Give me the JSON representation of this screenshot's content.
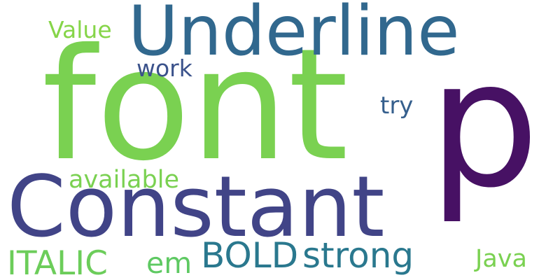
{
  "words": [
    {
      "text": "font",
      "color": "#7ad151"
    },
    {
      "text": "p",
      "color": "#471164"
    },
    {
      "text": "Underline",
      "color": "#31688e"
    },
    {
      "text": "Constant",
      "color": "#414487"
    },
    {
      "text": "BOLD",
      "color": "#2a788e"
    },
    {
      "text": "strong",
      "color": "#2a788e"
    },
    {
      "text": "ITALIC",
      "color": "#6ccd5a"
    },
    {
      "text": "em",
      "color": "#5ec962"
    },
    {
      "text": "Value",
      "color": "#86d549"
    },
    {
      "text": "work",
      "color": "#3b528b"
    },
    {
      "text": "try",
      "color": "#355f8d"
    },
    {
      "text": "available",
      "color": "#7ad151"
    },
    {
      "text": "Java",
      "color": "#7ad151"
    }
  ]
}
